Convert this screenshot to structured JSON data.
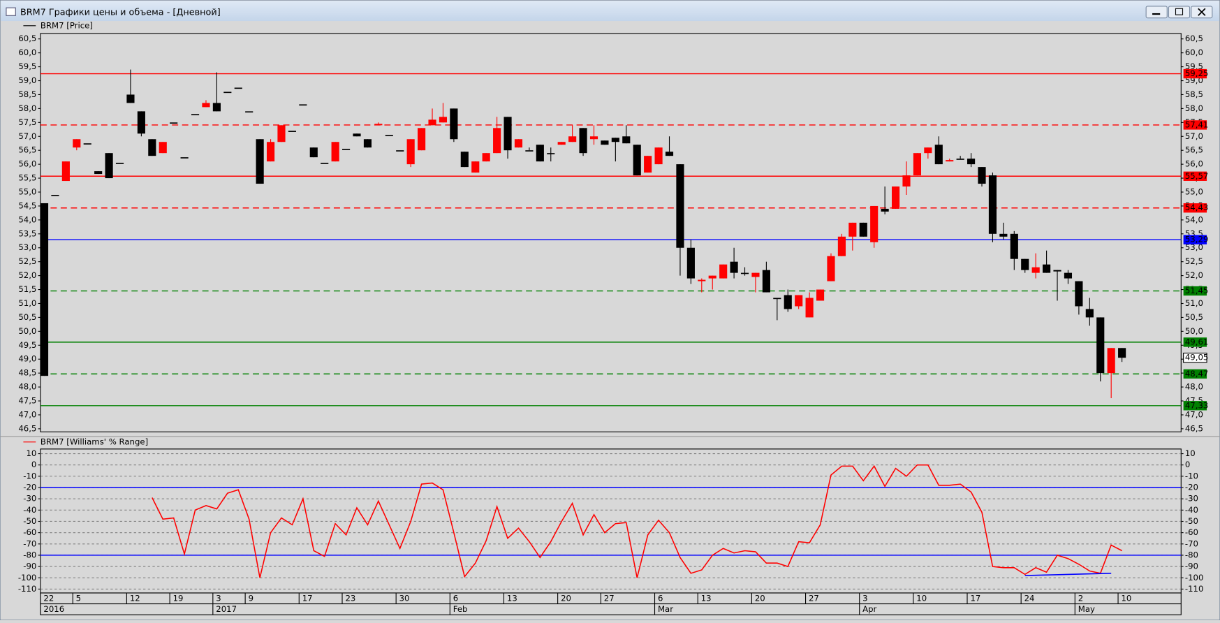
{
  "window": {
    "title": "BRM7 Графики цены и объема - [Дневной]"
  },
  "chart_data": [
    {
      "type": "candlestick",
      "name": "BRM7 [Price]",
      "categories": [
        "22",
        null,
        null,
        "5",
        null,
        null,
        null,
        null,
        "12",
        null,
        null,
        null,
        "19",
        null,
        null,
        null,
        "3",
        null,
        null,
        "9",
        null,
        null,
        null,
        null,
        "17",
        null,
        null,
        null,
        "23",
        null,
        null,
        null,
        null,
        "30",
        null,
        null,
        null,
        null,
        "6",
        null,
        null,
        null,
        null,
        "13",
        null,
        null,
        null,
        null,
        "20",
        null,
        null,
        null,
        "27",
        null,
        null,
        null,
        null,
        "6",
        null,
        null,
        null,
        "13",
        null,
        null,
        null,
        null,
        "20",
        null,
        null,
        null,
        null,
        "27",
        null,
        null,
        null,
        null,
        "3",
        null,
        null,
        null,
        null,
        "10",
        null,
        null,
        null,
        null,
        "17",
        null,
        null,
        null,
        null,
        "24",
        null,
        null,
        null,
        null,
        "2",
        null,
        null,
        null,
        "10"
      ],
      "periods": [
        "2016",
        null,
        null,
        null,
        null,
        null,
        null,
        null,
        null,
        null,
        null,
        null,
        null,
        null,
        null,
        null,
        "2017",
        null,
        null,
        null,
        null,
        null,
        null,
        null,
        null,
        null,
        null,
        null,
        null,
        null,
        null,
        null,
        null,
        null,
        null,
        null,
        null,
        null,
        "Feb",
        null,
        null,
        null,
        null,
        null,
        null,
        null,
        null,
        null,
        null,
        null,
        null,
        null,
        null,
        null,
        null,
        null,
        null,
        "Mar",
        null,
        null,
        null,
        null,
        null,
        null,
        null,
        null,
        null,
        null,
        null,
        null,
        null,
        null,
        null,
        null,
        null,
        null,
        "Apr",
        null,
        null,
        null,
        null,
        null,
        null,
        null,
        null,
        null,
        null,
        null,
        null,
        null,
        null,
        null,
        null,
        null,
        null,
        null,
        "May",
        null,
        null,
        null,
        null
      ],
      "open": [
        54.6,
        54.9,
        55.4,
        56.6,
        56.75,
        55.75,
        56.4,
        56.05,
        58.5,
        57.9,
        56.9,
        56.4,
        57.5,
        56.25,
        57.8,
        58.05,
        58.2,
        58.6,
        58.75,
        57.9,
        56.9,
        56.1,
        56.8,
        57.2,
        58.15,
        56.6,
        56.05,
        56.1,
        56.55,
        57.1,
        56.9,
        57.4,
        57.05,
        56.5,
        56.0,
        56.5,
        57.4,
        57.5,
        58.0,
        56.45,
        55.7,
        56.1,
        56.4,
        57.7,
        56.6,
        56.5,
        56.7,
        56.4,
        56.7,
        56.8,
        57.3,
        56.9,
        56.85,
        56.95,
        57.0,
        56.7,
        55.7,
        56.0,
        56.45,
        56.0,
        53.0,
        51.8,
        51.9,
        51.9,
        52.5,
        52.1,
        51.95,
        52.2,
        51.2,
        51.3,
        50.9,
        50.5,
        51.1,
        51.8,
        52.7,
        53.4,
        53.9,
        53.2,
        54.4,
        54.4,
        55.2,
        55.6,
        56.4,
        56.7,
        56.1,
        56.2,
        56.2,
        55.9,
        55.6,
        53.5,
        53.5,
        52.6,
        52.1,
        52.4,
        52.2,
        52.1,
        51.8,
        50.8,
        50.5,
        48.5,
        49.4
      ],
      "high": [
        54.6,
        54.9,
        56.1,
        56.9,
        56.75,
        55.75,
        56.4,
        56.05,
        59.4,
        57.9,
        56.9,
        56.8,
        57.5,
        56.25,
        57.8,
        58.3,
        59.3,
        58.6,
        58.75,
        57.9,
        56.9,
        56.9,
        57.4,
        57.2,
        58.15,
        56.6,
        56.05,
        56.8,
        56.55,
        57.1,
        56.9,
        57.5,
        57.05,
        56.5,
        56.9,
        57.3,
        58.0,
        58.2,
        58.0,
        56.45,
        56.1,
        56.4,
        57.7,
        57.7,
        56.9,
        56.6,
        56.7,
        56.6,
        56.8,
        57.4,
        57.3,
        57.4,
        56.85,
        56.95,
        57.4,
        56.7,
        56.3,
        56.6,
        57.0,
        56.0,
        53.3,
        51.9,
        52.0,
        52.4,
        53.0,
        52.3,
        52.1,
        52.5,
        51.2,
        51.5,
        51.3,
        51.4,
        51.5,
        52.8,
        53.5,
        53.9,
        53.9,
        54.5,
        55.2,
        55.2,
        56.1,
        56.4,
        56.6,
        57.0,
        56.2,
        56.3,
        56.4,
        55.9,
        55.7,
        53.9,
        53.6,
        52.6,
        52.8,
        52.9,
        52.2,
        52.2,
        51.8,
        51.2,
        50.5,
        49.4,
        49.4
      ],
      "low": [
        48.4,
        54.9,
        55.4,
        56.5,
        56.75,
        55.65,
        55.5,
        56.05,
        58.2,
        57.0,
        56.3,
        56.4,
        57.5,
        56.25,
        57.8,
        58.05,
        57.9,
        58.6,
        58.75,
        57.9,
        55.3,
        56.1,
        56.8,
        57.2,
        58.15,
        56.25,
        56.05,
        56.1,
        56.55,
        57.0,
        56.6,
        57.4,
        57.05,
        56.5,
        55.9,
        56.5,
        57.4,
        57.5,
        56.8,
        55.9,
        55.7,
        56.1,
        56.4,
        56.2,
        56.6,
        56.5,
        56.1,
        56.1,
        56.7,
        56.8,
        56.3,
        56.7,
        56.7,
        56.1,
        56.75,
        55.6,
        55.7,
        56.0,
        56.3,
        52.0,
        51.7,
        51.4,
        51.5,
        51.9,
        51.9,
        52.0,
        51.4,
        51.4,
        50.4,
        50.7,
        50.8,
        50.5,
        51.1,
        51.8,
        52.7,
        52.9,
        53.4,
        53.0,
        54.2,
        54.4,
        54.9,
        55.6,
        56.2,
        56.0,
        56.1,
        56.2,
        55.9,
        55.2,
        53.2,
        53.3,
        52.2,
        52.1,
        51.9,
        52.1,
        51.1,
        51.7,
        50.6,
        50.2,
        48.2,
        47.6,
        48.9
      ],
      "close": [
        48.4,
        54.9,
        56.1,
        56.9,
        56.75,
        55.65,
        55.5,
        56.05,
        58.2,
        57.1,
        56.3,
        56.8,
        57.5,
        56.25,
        57.8,
        58.2,
        57.9,
        58.6,
        58.75,
        57.9,
        55.3,
        56.8,
        57.4,
        57.2,
        58.15,
        56.25,
        56.05,
        56.8,
        56.55,
        57.0,
        56.6,
        57.45,
        57.05,
        56.5,
        56.9,
        57.3,
        57.6,
        57.7,
        56.9,
        55.9,
        56.1,
        56.4,
        57.3,
        56.5,
        56.9,
        56.5,
        56.1,
        56.4,
        56.8,
        57.0,
        56.4,
        57.0,
        56.7,
        56.8,
        56.75,
        55.6,
        56.3,
        56.6,
        56.3,
        53.0,
        51.9,
        51.85,
        52.0,
        52.4,
        52.1,
        52.1,
        52.1,
        51.4,
        51.2,
        50.8,
        51.3,
        51.2,
        51.5,
        52.7,
        53.4,
        53.9,
        53.4,
        54.5,
        54.3,
        55.2,
        55.6,
        56.4,
        56.6,
        56.0,
        56.15,
        56.2,
        56.0,
        55.3,
        53.5,
        53.4,
        52.6,
        52.2,
        52.3,
        52.1,
        52.15,
        51.9,
        50.9,
        50.5,
        48.5,
        49.4,
        49.05
      ],
      "up_color": "#ff0000",
      "down_color": "#000000",
      "ylim": [
        46.5,
        60.5
      ],
      "yticks": [
        {
          "value": 46.5,
          "label": "46,5"
        },
        {
          "value": 47,
          "label": "47,0"
        },
        {
          "value": 47.5,
          "label": "47,5"
        },
        {
          "value": 48,
          "label": "48,0"
        },
        {
          "value": 48.5,
          "label": "48,5"
        },
        {
          "value": 49,
          "label": "49,0"
        },
        {
          "value": 49.5,
          "label": "49,5"
        },
        {
          "value": 50,
          "label": "50,0"
        },
        {
          "value": 50.5,
          "label": "50,5"
        },
        {
          "value": 51,
          "label": "51,0"
        },
        {
          "value": 51.5,
          "label": "51,5"
        },
        {
          "value": 52,
          "label": "52,0"
        },
        {
          "value": 52.5,
          "label": "52,5"
        },
        {
          "value": 53,
          "label": "53,0"
        },
        {
          "value": 53.5,
          "label": "53,5"
        },
        {
          "value": 54,
          "label": "54,0"
        },
        {
          "value": 54.5,
          "label": "54,5"
        },
        {
          "value": 55,
          "label": "55,0"
        },
        {
          "value": 55.5,
          "label": "55,5"
        },
        {
          "value": 56,
          "label": "56,0"
        },
        {
          "value": 56.5,
          "label": "56,5"
        },
        {
          "value": 57,
          "label": "57,0"
        },
        {
          "value": 57.5,
          "label": "57,5"
        },
        {
          "value": 58,
          "label": "58,0"
        },
        {
          "value": 58.5,
          "label": "58,5"
        },
        {
          "value": 59,
          "label": "59,0"
        },
        {
          "value": 59.5,
          "label": "59,5"
        },
        {
          "value": 60,
          "label": "60,0"
        },
        {
          "value": 60.5,
          "label": "60,5"
        }
      ],
      "levels": [
        {
          "value": 59.25,
          "label": "59,25",
          "color": "#ff0000",
          "dashed": false
        },
        {
          "value": 57.41,
          "label": "57,41",
          "color": "#ff0000",
          "dashed": true
        },
        {
          "value": 55.57,
          "label": "55,57",
          "color": "#ff0000",
          "dashed": false
        },
        {
          "value": 54.43,
          "label": "54,43",
          "color": "#ff0000",
          "dashed": true
        },
        {
          "value": 53.29,
          "label": "53,29",
          "color": "#0000ff",
          "dashed": false
        },
        {
          "value": 51.45,
          "label": "51,45",
          "color": "#008000",
          "dashed": true
        },
        {
          "value": 49.61,
          "label": "49,61",
          "color": "#008000",
          "dashed": false
        },
        {
          "value": 48.47,
          "label": "48,47",
          "color": "#008000",
          "dashed": true
        },
        {
          "value": 47.33,
          "label": "47,33",
          "color": "#008000",
          "dashed": false
        }
      ],
      "last": {
        "value": 49.05,
        "label": "49,05"
      },
      "grid": false
    },
    {
      "type": "line",
      "series": [
        {
          "name": "BRM7 [Williams' % Range]",
          "color": "#ff0000",
          "values": [
            null,
            null,
            null,
            null,
            null,
            null,
            null,
            null,
            null,
            null,
            -29,
            -48,
            -47,
            -79,
            -40,
            -36,
            -39,
            -25,
            -22,
            -48,
            -100,
            -60,
            -47,
            -53,
            -30,
            -76,
            -81,
            -52,
            -62,
            -38,
            -53,
            -32,
            -53,
            -74,
            -50,
            -17,
            -16,
            -22,
            -60,
            -99,
            -87,
            -67,
            -37,
            -65,
            -56,
            -68,
            -82,
            -68,
            -50,
            -34,
            -62,
            -44,
            -60,
            -52,
            -51,
            -100,
            -62,
            -49,
            -60,
            -82,
            -96,
            -93,
            -80,
            -74,
            -78,
            -76,
            -77,
            -87,
            -87,
            -90,
            -68,
            -69,
            -53,
            -9,
            -1,
            -1,
            -14,
            -1,
            -19,
            -3,
            -10,
            0,
            0,
            -18,
            -18,
            -17,
            -24,
            -42,
            -90,
            -91,
            -91,
            -97,
            -91,
            -95,
            -80,
            -83,
            -88,
            -94,
            -96,
            -71,
            -76
          ]
        }
      ],
      "ylim": [
        -110,
        10
      ],
      "yticks": [
        10,
        0,
        -10,
        -20,
        -30,
        -40,
        -50,
        -60,
        -70,
        -80,
        -90,
        -100,
        -110
      ],
      "levels": [
        {
          "value": -20,
          "color": "#0000ff"
        },
        {
          "value": -80,
          "color": "#0000ff"
        }
      ],
      "trendline": {
        "x": [
          91,
          99
        ],
        "values": [
          -98,
          -96
        ],
        "color": "#0000ff"
      },
      "grid": true
    }
  ]
}
